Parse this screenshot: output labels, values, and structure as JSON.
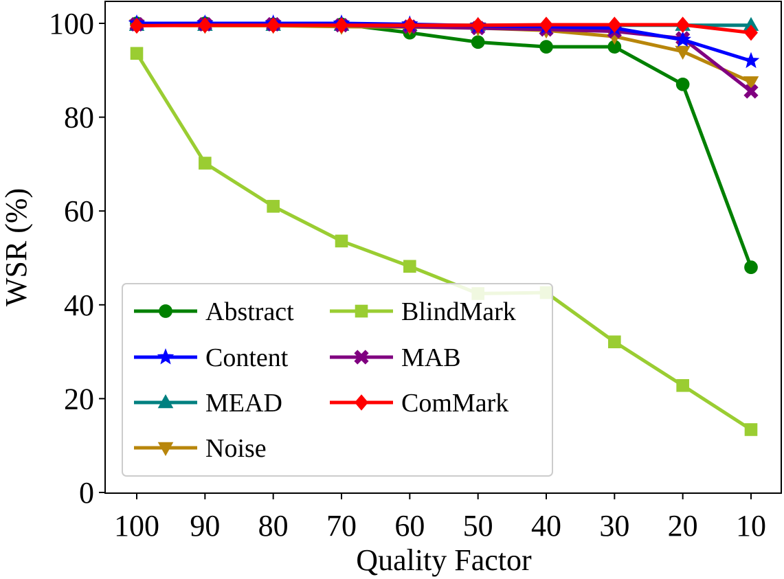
{
  "chart_data": {
    "type": "line",
    "title": "",
    "xlabel": "Quality Factor",
    "ylabel": "WSR (%)",
    "categories": [
      "100",
      "90",
      "80",
      "70",
      "60",
      "50",
      "40",
      "30",
      "20",
      "10"
    ],
    "ylim": [
      0,
      100
    ],
    "yticks": [
      "0",
      "20",
      "40",
      "60",
      "80",
      "100"
    ],
    "grid": false,
    "legend_position": "lower-left",
    "series": [
      {
        "name": "Abstract",
        "color": "#008000",
        "marker": "circle",
        "values": [
          100,
          100,
          99.8,
          99.8,
          98,
          96,
          95,
          95,
          87,
          48
        ]
      },
      {
        "name": "BlindMark",
        "color": "#9ACD32",
        "marker": "square",
        "values": [
          93.6,
          70.2,
          61,
          53.6,
          48.2,
          42.4,
          42.6,
          32.1,
          22.8,
          13.4
        ]
      },
      {
        "name": "Content",
        "color": "#0000FF",
        "marker": "star",
        "values": [
          100,
          100,
          100,
          100,
          99.8,
          99.5,
          99.3,
          99,
          96.5,
          92
        ]
      },
      {
        "name": "MAB",
        "color": "#800080",
        "marker": "x-thick",
        "values": [
          99.8,
          99.8,
          99.8,
          99.6,
          99.3,
          99,
          98.7,
          98.3,
          96.8,
          85.5
        ]
      },
      {
        "name": "MEAD",
        "color": "#008080",
        "marker": "triangle-up",
        "values": [
          99.6,
          99.6,
          99.6,
          99.6,
          99.6,
          99.6,
          99.6,
          99.6,
          99.6,
          99.6
        ]
      },
      {
        "name": "ComMark",
        "color": "#FF0000",
        "marker": "diamond",
        "values": [
          99.5,
          99.6,
          99.6,
          99.6,
          99.6,
          99.6,
          99.7,
          99.7,
          99.7,
          98
        ]
      },
      {
        "name": "Noise",
        "color": "#B8860B",
        "marker": "triangle-down",
        "values": [
          99.6,
          99.5,
          99.5,
          99.3,
          99.2,
          99,
          98.5,
          97.2,
          94,
          87.5
        ]
      }
    ],
    "legend_order": [
      "Abstract",
      "BlindMark",
      "Content",
      "MAB",
      "MEAD",
      "ComMark",
      "Noise"
    ]
  }
}
